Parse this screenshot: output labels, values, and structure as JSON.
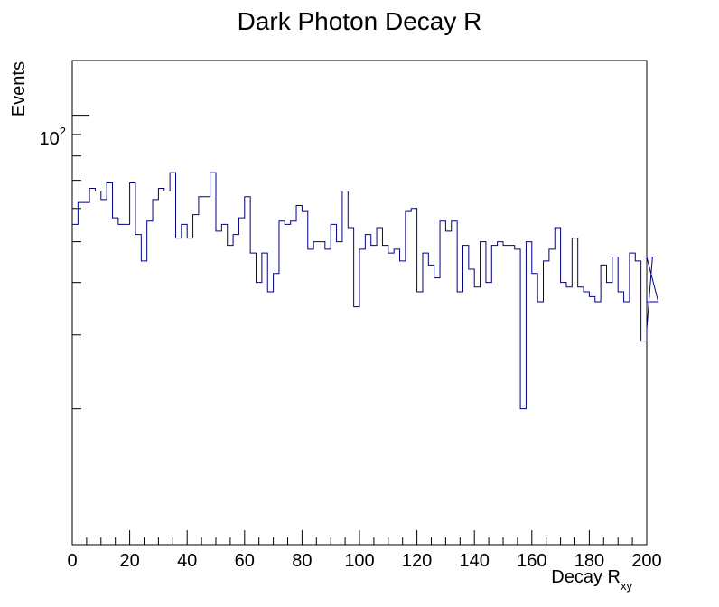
{
  "chart_data": {
    "type": "histogram",
    "title": "Dark Photon Decay R",
    "xlabel": "Decay R",
    "xlabel_sub": "xy",
    "ylabel": "Events",
    "xlim": [
      0,
      200
    ],
    "ylim_log": [
      9.5,
      135
    ],
    "y_scale": "log",
    "bin_width": 2,
    "x_ticks": [
      0,
      20,
      40,
      60,
      80,
      100,
      120,
      140,
      160,
      180,
      200
    ],
    "x_tick_labels": [
      "0",
      "20",
      "40",
      "60",
      "80",
      "100",
      "120",
      "140",
      "160",
      "180",
      "200"
    ],
    "y_tick_label": {
      "base": "10",
      "exp": "2",
      "value": 100
    },
    "line_color": "#000080",
    "values": [
      55,
      62,
      62,
      67,
      66,
      63,
      69,
      57,
      55,
      55,
      69,
      52,
      45,
      56,
      63,
      67,
      66,
      73,
      51,
      55,
      51,
      58,
      64,
      64,
      73,
      53,
      55,
      49,
      52,
      57,
      64,
      47,
      40,
      47,
      38,
      42,
      56,
      55,
      56,
      61,
      59,
      48,
      50,
      50,
      48,
      55,
      50,
      66,
      54,
      35,
      48,
      52,
      49,
      54,
      49,
      47,
      48,
      45,
      59,
      60,
      38,
      47,
      44,
      41,
      56,
      53,
      56,
      38,
      49,
      43,
      39,
      50,
      40,
      49,
      50,
      49,
      49,
      48,
      20,
      50,
      42,
      36,
      45,
      48,
      54,
      40,
      39,
      51,
      39,
      38,
      37,
      36,
      44,
      40,
      46,
      38,
      36,
      47,
      45,
      29,
      31,
      46,
      36
    ]
  }
}
